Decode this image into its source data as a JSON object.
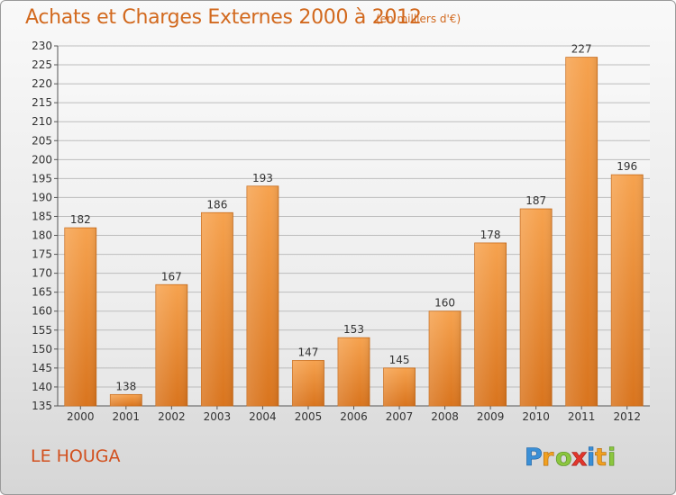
{
  "header": {
    "title": "Achats et Charges Externes 2000 à 2012",
    "subtitle": "(en milliers d'€)"
  },
  "footer": {
    "commune": "LE HOUGA",
    "logo_text": "Proxiti"
  },
  "colors": {
    "bar_top": "#f6a24e",
    "bar_bottom": "#d9741d",
    "title": "#d2691e",
    "axis": "#555555"
  },
  "chart_data": {
    "type": "bar",
    "title": "Achats et Charges Externes 2000 à 2012",
    "subtitle": "(en milliers d'€)",
    "categories": [
      "2000",
      "2001",
      "2002",
      "2003",
      "2004",
      "2005",
      "2006",
      "2007",
      "2008",
      "2009",
      "2010",
      "2011",
      "2012"
    ],
    "values": [
      182,
      138,
      167,
      186,
      193,
      147,
      153,
      145,
      160,
      178,
      187,
      227,
      196
    ],
    "ylim": [
      135,
      230
    ],
    "ytick_step": 5,
    "grid": true,
    "data_labels": true
  }
}
